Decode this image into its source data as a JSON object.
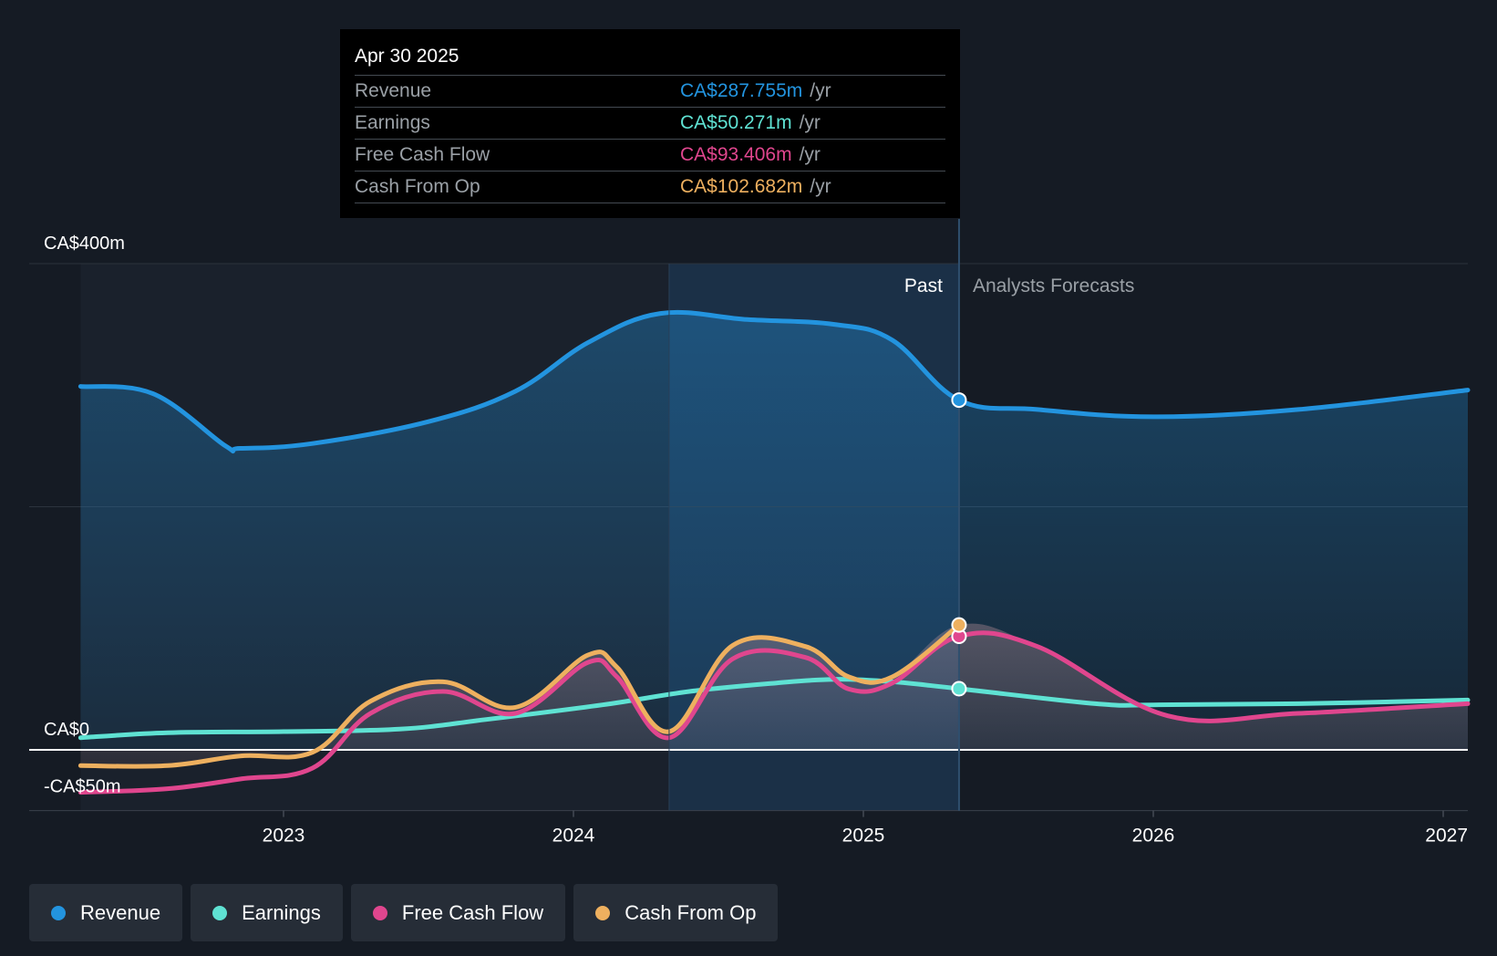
{
  "chart_data": {
    "type": "area",
    "currency_unit": "CA$ millions",
    "ylim": [
      -50,
      400
    ],
    "x_range": [
      "2022-04-30",
      "2027-01-31"
    ],
    "y_axis_labels": [
      "CA$400m",
      "CA$0",
      "-CA$50m"
    ],
    "y_axis_label_values": [
      400,
      0,
      -50
    ],
    "y_gridlines": [
      400,
      200,
      0
    ],
    "x_ticks": [
      "2023",
      "2024",
      "2025",
      "2026",
      "2027"
    ],
    "x_tick_values": [
      2023.0,
      2024.0,
      2025.0,
      2026.0,
      2027.0
    ],
    "divider_date": 2025.33,
    "highlight_start": 2024.33,
    "past_label": "Past",
    "forecast_label": "Analysts Forecasts",
    "tooltip": {
      "date": "Apr 30 2025",
      "rows": [
        {
          "label": "Revenue",
          "value": "CA$287.755m",
          "unit": "/yr",
          "color": "#2394df"
        },
        {
          "label": "Earnings",
          "value": "CA$50.271m",
          "unit": "/yr",
          "color": "#5fe2d3"
        },
        {
          "label": "Free Cash Flow",
          "value": "CA$93.406m",
          "unit": "/yr",
          "color": "#e0468e"
        },
        {
          "label": "Cash From Op",
          "value": "CA$102.682m",
          "unit": "/yr",
          "color": "#eeb05f"
        }
      ]
    },
    "series": [
      {
        "name": "Revenue",
        "color": "#2394df",
        "key": "revenue",
        "x": [
          2022.3,
          2022.55,
          2022.8,
          2022.85,
          2023.1,
          2023.5,
          2023.8,
          2024.05,
          2024.3,
          2024.6,
          2024.9,
          2025.1,
          2025.33,
          2025.6,
          2026.0,
          2026.5,
          2027.1
        ],
        "values": [
          299,
          293,
          250,
          248,
          252,
          270,
          295,
          335,
          359,
          354,
          350,
          337,
          287.755,
          280,
          274,
          280,
          296
        ]
      },
      {
        "name": "Earnings",
        "color": "#5fe2d3",
        "key": "earnings",
        "x": [
          2022.3,
          2022.6,
          2023.0,
          2023.4,
          2023.7,
          2024.1,
          2024.4,
          2024.7,
          2024.9,
          2025.1,
          2025.33,
          2025.8,
          2026.0,
          2026.5,
          2027.1
        ],
        "values": [
          10,
          14,
          15,
          17,
          25,
          37,
          48,
          55,
          58,
          56,
          50.271,
          38,
          37,
          38,
          41
        ]
      },
      {
        "name": "Free Cash Flow",
        "color": "#e0468e",
        "key": "fcf",
        "x": [
          2022.3,
          2022.6,
          2022.85,
          2023.1,
          2023.3,
          2023.55,
          2023.8,
          2024.05,
          2024.15,
          2024.33,
          2024.55,
          2024.8,
          2024.95,
          2025.1,
          2025.33,
          2025.6,
          2026.05,
          2026.5,
          2027.1
        ],
        "values": [
          -35,
          -32,
          -24,
          -15,
          30,
          48,
          30,
          72,
          60,
          10,
          75,
          76,
          50,
          55,
          93.406,
          85,
          28,
          30,
          38
        ]
      },
      {
        "name": "Cash From Op",
        "color": "#eeb05f",
        "key": "cfo",
        "x": [
          2022.3,
          2022.6,
          2022.85,
          2023.1,
          2023.3,
          2023.55,
          2023.8,
          2024.05,
          2024.15,
          2024.33,
          2024.55,
          2024.8,
          2024.95,
          2025.1,
          2025.33
        ],
        "values": [
          -13,
          -13,
          -5,
          -2,
          40,
          56,
          35,
          78,
          68,
          15,
          86,
          85,
          60,
          60,
          102.682
        ]
      }
    ],
    "legend": [
      {
        "name": "Revenue",
        "color": "#2394df"
      },
      {
        "name": "Earnings",
        "color": "#5fe2d3"
      },
      {
        "name": "Free Cash Flow",
        "color": "#e0468e"
      },
      {
        "name": "Cash From Op",
        "color": "#eeb05f"
      }
    ]
  }
}
